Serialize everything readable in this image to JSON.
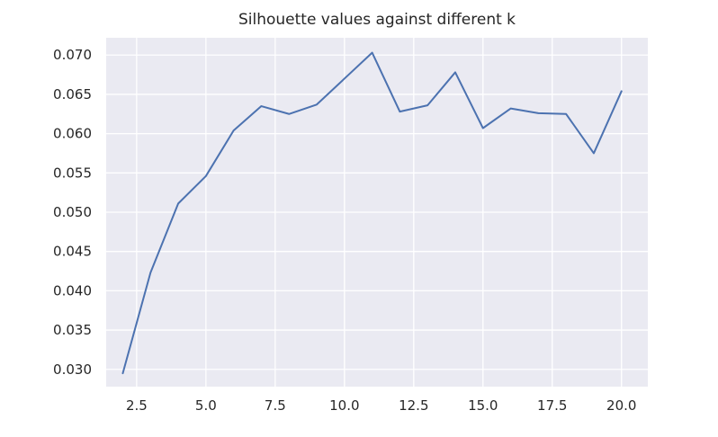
{
  "chart_data": {
    "type": "line",
    "title": "Silhouette values against different k",
    "xlabel": "",
    "ylabel": "",
    "xlim": [
      1.4,
      20.95
    ],
    "ylim": [
      0.0278,
      0.0722
    ],
    "xticks": [
      2.5,
      5.0,
      7.5,
      10.0,
      12.5,
      15.0,
      17.5,
      20.0
    ],
    "xtick_labels": [
      "2.5",
      "5.0",
      "7.5",
      "10.0",
      "12.5",
      "15.0",
      "17.5",
      "20.0"
    ],
    "yticks": [
      0.03,
      0.035,
      0.04,
      0.045,
      0.05,
      0.055,
      0.06,
      0.065,
      0.07
    ],
    "ytick_labels": [
      "0.030",
      "0.035",
      "0.040",
      "0.045",
      "0.050",
      "0.055",
      "0.060",
      "0.065",
      "0.070"
    ],
    "grid": true,
    "colors": {
      "line": "#4c72b0",
      "axes_bg": "#eaeaf2",
      "grid": "#ffffff",
      "text": "#262626"
    },
    "series": [
      {
        "x": [
          2,
          3,
          4,
          5,
          6,
          7,
          8,
          9,
          10,
          11,
          12,
          13,
          14,
          15,
          16,
          17,
          18,
          19,
          20
        ],
        "values": [
          0.0295,
          0.0423,
          0.0511,
          0.0546,
          0.0604,
          0.0635,
          0.0625,
          0.0637,
          0.067,
          0.0703,
          0.0628,
          0.0636,
          0.0678,
          0.0607,
          0.0632,
          0.0626,
          0.0625,
          0.0575,
          0.0654
        ]
      }
    ]
  }
}
